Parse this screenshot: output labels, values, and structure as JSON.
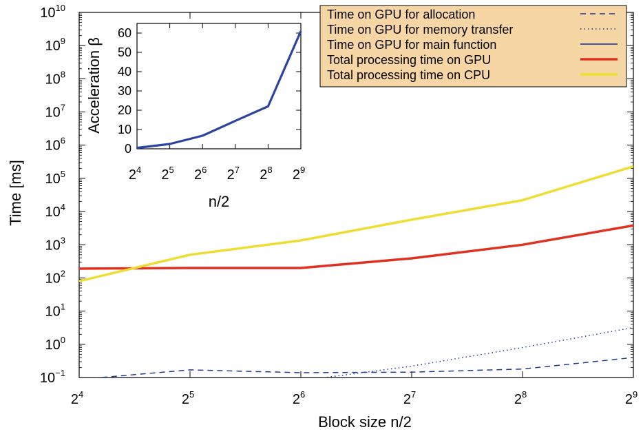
{
  "chart_data": [
    {
      "type": "line",
      "title": "",
      "xlabel": "Block size n/2",
      "ylabel": "Time [ms]",
      "x_scale": "log2",
      "y_scale": "log10",
      "x": [
        16,
        32,
        64,
        128,
        256,
        512
      ],
      "xlim": [
        16,
        512
      ],
      "ylim": [
        0.1,
        10000000000
      ],
      "x_ticks": [
        {
          "base": "2",
          "exp": "4"
        },
        {
          "base": "2",
          "exp": "5"
        },
        {
          "base": "2",
          "exp": "6"
        },
        {
          "base": "2",
          "exp": "7"
        },
        {
          "base": "2",
          "exp": "8"
        },
        {
          "base": "2",
          "exp": "9"
        }
      ],
      "y_ticks": [
        {
          "base": "10",
          "exp": "−1",
          "value": 0.1
        },
        {
          "base": "10",
          "exp": "0",
          "value": 1
        },
        {
          "base": "10",
          "exp": "1",
          "value": 10
        },
        {
          "base": "10",
          "exp": "2",
          "value": 100
        },
        {
          "base": "10",
          "exp": "3",
          "value": 1000
        },
        {
          "base": "10",
          "exp": "4",
          "value": 10000
        },
        {
          "base": "10",
          "exp": "5",
          "value": 100000
        },
        {
          "base": "10",
          "exp": "6",
          "value": 1000000
        },
        {
          "base": "10",
          "exp": "7",
          "value": 10000000
        },
        {
          "base": "10",
          "exp": "8",
          "value": 100000000
        },
        {
          "base": "10",
          "exp": "9",
          "value": 1000000000
        },
        {
          "base": "10",
          "exp": "10",
          "value": 10000000000
        }
      ],
      "legend_position": "top-right",
      "grid": false,
      "series": [
        {
          "name": "Time on GPU for allocation",
          "color": "#1f3a93",
          "style": "dashed",
          "x": [
            14.5,
            32,
            64,
            128,
            256,
            512
          ],
          "values": [
            0.08,
            0.17,
            0.14,
            0.145,
            0.18,
            0.4
          ]
        },
        {
          "name": "Time on GPU for memory transfer",
          "color": "#1f3a93",
          "style": "dotted",
          "x": [
            64,
            128,
            256,
            512
          ],
          "values": [
            0.08,
            0.22,
            0.8,
            3.2
          ]
        },
        {
          "name": "Time on GPU for main function",
          "color": "#2b44a0",
          "style": "solid",
          "x": [],
          "values": []
        },
        {
          "name": "Total processing time on GPU",
          "color": "#e03020",
          "style": "thick",
          "x": [
            16,
            32,
            64,
            128,
            256,
            512
          ],
          "values": [
            190,
            200,
            200,
            390,
            1000,
            3800
          ]
        },
        {
          "name": "Total processing time on CPU",
          "color": "#eedd33",
          "style": "thick",
          "x": [
            16,
            32,
            64,
            128,
            256,
            512
          ],
          "values": [
            80,
            500,
            1350,
            5700,
            22000,
            230000
          ]
        }
      ]
    },
    {
      "type": "line",
      "title": "",
      "xlabel": "n/2",
      "ylabel": "Acceleration β",
      "x_scale": "log2",
      "x": [
        16,
        32,
        64,
        128,
        256,
        512
      ],
      "xlim": [
        16,
        512
      ],
      "ylim": [
        0,
        65
      ],
      "x_ticks": [
        {
          "base": "2",
          "exp": "4"
        },
        {
          "base": "2",
          "exp": "5"
        },
        {
          "base": "2",
          "exp": "6"
        },
        {
          "base": "2",
          "exp": "7"
        },
        {
          "base": "2",
          "exp": "8"
        },
        {
          "base": "2",
          "exp": "9"
        }
      ],
      "y_ticks": [
        0,
        10,
        20,
        30,
        40,
        50,
        60
      ],
      "series": [
        {
          "color": "#2b44a0",
          "values": [
            0.5,
            2.5,
            6.8,
            14.5,
            22,
            61
          ]
        }
      ]
    }
  ]
}
